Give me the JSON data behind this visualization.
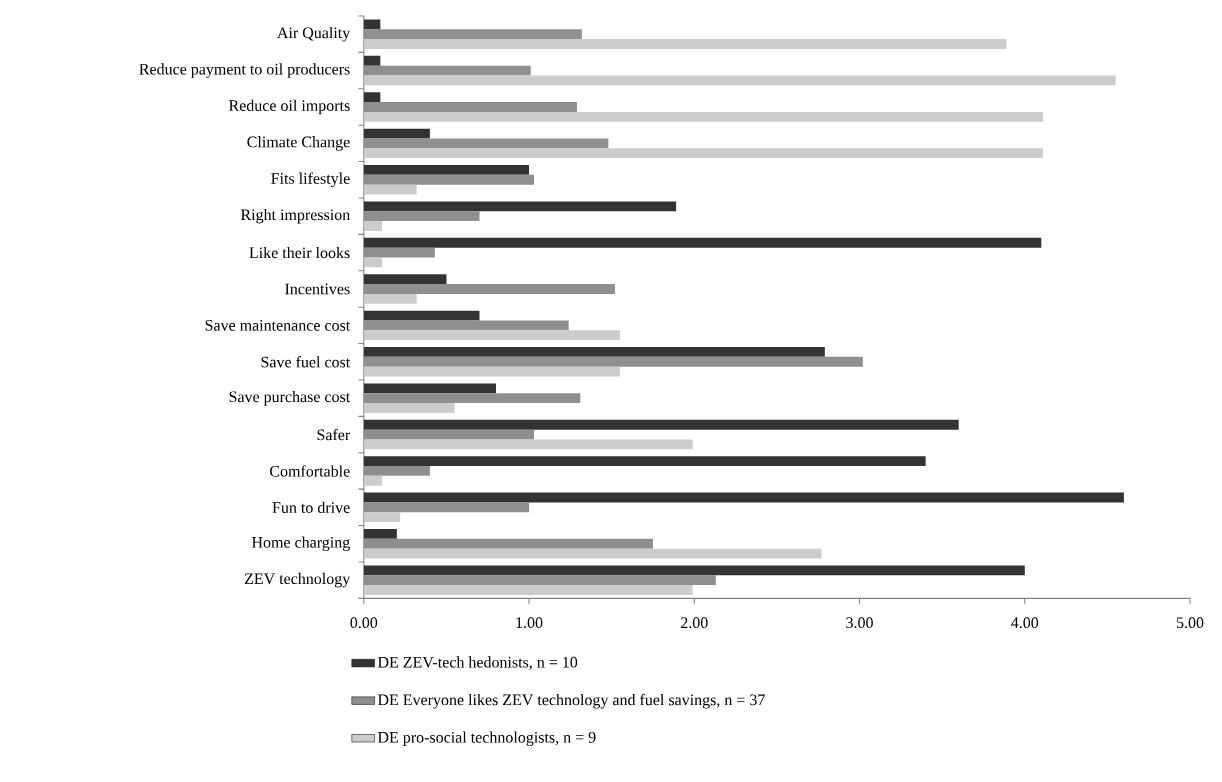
{
  "chart_data": {
    "type": "bar",
    "orientation": "horizontal",
    "categories": [
      "Air Quality",
      "Reduce payment to oil producers",
      "Reduce oil imports",
      "Climate Change",
      "Fits lifestyle",
      "Right impression",
      "Like their looks",
      "Incentives",
      "Save maintenance cost",
      "Save fuel cost",
      "Save purchase cost",
      "Safer",
      "Comfortable",
      "Fun to drive",
      "Home charging",
      "ZEV technology"
    ],
    "series": [
      {
        "name": "DE ZEV-tech hedonists, n = 10",
        "color": "#333333",
        "values": [
          0.1,
          0.1,
          0.1,
          0.4,
          1.0,
          1.89,
          4.1,
          0.5,
          0.7,
          2.79,
          0.8,
          3.6,
          3.4,
          4.6,
          0.2,
          4.0
        ]
      },
      {
        "name": "DE Everyone likes ZEV technology and fuel savings, n = 37",
        "color": "#8f8f8f",
        "values": [
          1.32,
          1.01,
          1.29,
          1.48,
          1.03,
          0.7,
          0.43,
          1.52,
          1.24,
          3.02,
          1.31,
          1.03,
          0.4,
          1.0,
          1.75,
          2.13
        ]
      },
      {
        "name": "DE pro-social technologists, n = 9",
        "color": "#cccccc",
        "values": [
          3.89,
          4.55,
          4.11,
          4.11,
          0.32,
          0.11,
          0.11,
          0.32,
          1.55,
          1.55,
          0.55,
          1.99,
          0.11,
          0.22,
          2.77,
          1.99
        ]
      }
    ],
    "xlim": [
      0,
      5
    ],
    "xticks": [
      {
        "value": 0,
        "label": "0.00"
      },
      {
        "value": 1,
        "label": "1.00"
      },
      {
        "value": 2,
        "label": "2.00"
      },
      {
        "value": 3,
        "label": "3.00"
      },
      {
        "value": 4,
        "label": "4.00"
      },
      {
        "value": 5,
        "label": "5.00"
      }
    ],
    "legend": "bottom"
  }
}
